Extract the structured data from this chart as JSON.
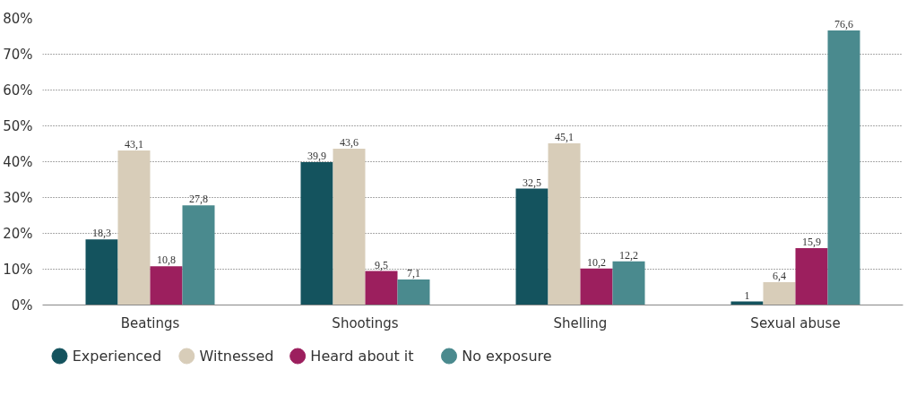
{
  "chart_data": {
    "type": "bar",
    "categories": [
      "Beatings",
      "Shootings",
      "Shelling",
      "Sexual abuse"
    ],
    "series": [
      {
        "name": "Experienced",
        "color": "#14535e",
        "values": [
          18.3,
          39.9,
          32.5,
          1
        ],
        "value_labels": [
          "18,3",
          "39,9",
          "32,5",
          "1"
        ]
      },
      {
        "name": "Witnessed",
        "color": "#d8cdb9",
        "values": [
          43.1,
          43.6,
          45.1,
          6.4
        ],
        "value_labels": [
          "43,1",
          "43,6",
          "45,1",
          "6,4"
        ]
      },
      {
        "name": "Heard about it",
        "color": "#9c1f5e",
        "values": [
          10.8,
          9.5,
          10.2,
          15.9
        ],
        "value_labels": [
          "10,8",
          "9,5",
          "10,2",
          "15,9"
        ]
      },
      {
        "name": "No exposure",
        "color": "#4a8a8e",
        "values": [
          27.8,
          7.1,
          12.2,
          76.6
        ],
        "value_labels": [
          "27,8",
          "7,1",
          "12,2",
          "76,6"
        ]
      }
    ],
    "ylim": [
      0,
      80
    ],
    "yticks": [
      {
        "value": 0,
        "label": "0%"
      },
      {
        "value": 10,
        "label": "10%"
      },
      {
        "value": 20,
        "label": "20%"
      },
      {
        "value": 30,
        "label": "30%"
      },
      {
        "value": 40,
        "label": "40%"
      },
      {
        "value": 50,
        "label": "50%"
      },
      {
        "value": 60,
        "label": "60%"
      },
      {
        "value": 70,
        "label": "70%"
      },
      {
        "value": 80,
        "label": "80%"
      }
    ],
    "grid": "y",
    "legend": "bottom"
  }
}
